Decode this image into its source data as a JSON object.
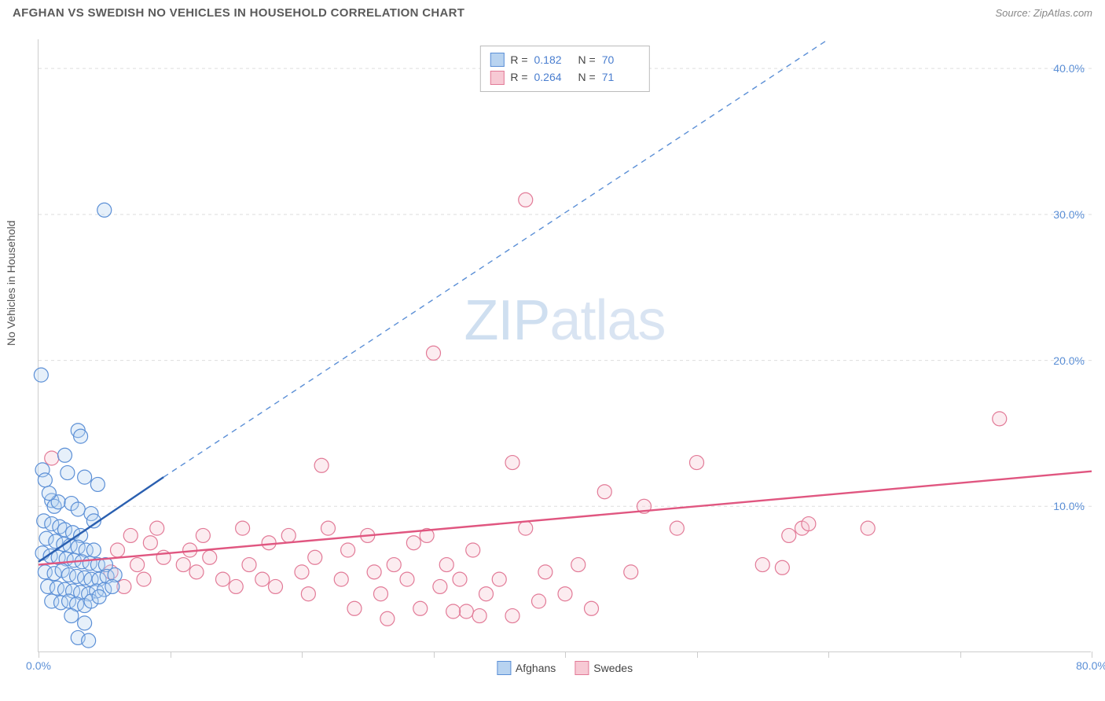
{
  "title": "AFGHAN VS SWEDISH NO VEHICLES IN HOUSEHOLD CORRELATION CHART",
  "source": "Source: ZipAtlas.com",
  "watermark": {
    "zip": "ZIP",
    "atlas": "atlas"
  },
  "y_axis_label": "No Vehicles in Household",
  "chart": {
    "type": "scatter",
    "background_color": "#ffffff",
    "grid_color": "#dddddd",
    "grid_dash": "4,4",
    "axis_color": "#cccccc",
    "xlim": [
      0,
      80
    ],
    "ylim": [
      0,
      42
    ],
    "x_ticks": [
      0,
      10,
      20,
      30,
      40,
      50,
      60,
      70,
      80
    ],
    "x_tick_labels": {
      "0": "0.0%",
      "80": "80.0%"
    },
    "y_ticks": [
      10,
      20,
      30,
      40
    ],
    "y_tick_labels": {
      "10": "10.0%",
      "20": "20.0%",
      "30": "30.0%",
      "40": "40.0%"
    },
    "tick_label_color": "#5b8fd6",
    "tick_label_fontsize": 14,
    "axis_label_fontsize": 14,
    "title_fontsize": 15,
    "title_color": "#5b5b5b",
    "point_radius": 9,
    "point_fill_opacity": 0.35,
    "point_stroke_width": 1.2
  },
  "stats_legend": {
    "rows": [
      {
        "swatch_fill": "#b8d3f0",
        "swatch_border": "#5b8fd6",
        "r_label": "R =",
        "r_value": "0.182",
        "n_label": "N =",
        "n_value": "70"
      },
      {
        "swatch_fill": "#f7c9d4",
        "swatch_border": "#e27a97",
        "r_label": "R =",
        "r_value": "0.264",
        "n_label": "N =",
        "n_value": "71"
      }
    ]
  },
  "series_legend": [
    {
      "swatch_fill": "#b8d3f0",
      "swatch_border": "#5b8fd6",
      "label": "Afghans"
    },
    {
      "swatch_fill": "#f7c9d4",
      "swatch_border": "#e27a97",
      "label": "Swedes"
    }
  ],
  "series": [
    {
      "name": "Afghans",
      "fill": "#b8d3f0",
      "stroke": "#5b8fd6",
      "trend": {
        "solid": {
          "x1": 0,
          "y1": 6.2,
          "x2": 9.5,
          "y2": 12.0,
          "color": "#2a5fb0",
          "width": 2.4
        },
        "dashed": {
          "x1": 9.5,
          "y1": 12.0,
          "x2": 60,
          "y2": 42.0,
          "color": "#5b8fd6",
          "width": 1.4,
          "dash": "7,6"
        }
      },
      "points": [
        [
          0.2,
          19.0
        ],
        [
          5.0,
          30.3
        ],
        [
          0.3,
          12.5
        ],
        [
          3.0,
          15.2
        ],
        [
          3.2,
          14.8
        ],
        [
          2.0,
          13.5
        ],
        [
          0.5,
          11.8
        ],
        [
          3.5,
          12.0
        ],
        [
          4.5,
          11.5
        ],
        [
          2.2,
          12.3
        ],
        [
          1.0,
          10.4
        ],
        [
          1.2,
          10.0
        ],
        [
          1.5,
          10.3
        ],
        [
          2.5,
          10.2
        ],
        [
          0.8,
          10.9
        ],
        [
          3.0,
          9.8
        ],
        [
          4.0,
          9.5
        ],
        [
          4.2,
          9.0
        ],
        [
          0.4,
          9.0
        ],
        [
          1.0,
          8.8
        ],
        [
          1.6,
          8.6
        ],
        [
          2.0,
          8.4
        ],
        [
          2.6,
          8.2
        ],
        [
          3.2,
          8.0
        ],
        [
          0.6,
          7.8
        ],
        [
          1.3,
          7.6
        ],
        [
          1.9,
          7.4
        ],
        [
          2.4,
          7.3
        ],
        [
          3.0,
          7.2
        ],
        [
          3.6,
          7.0
        ],
        [
          4.2,
          7.0
        ],
        [
          0.3,
          6.8
        ],
        [
          0.9,
          6.6
        ],
        [
          1.5,
          6.5
        ],
        [
          2.1,
          6.4
        ],
        [
          2.7,
          6.3
        ],
        [
          3.3,
          6.2
        ],
        [
          3.9,
          6.1
        ],
        [
          4.5,
          6.0
        ],
        [
          5.1,
          6.0
        ],
        [
          0.5,
          5.5
        ],
        [
          1.2,
          5.4
        ],
        [
          1.8,
          5.6
        ],
        [
          2.3,
          5.3
        ],
        [
          2.9,
          5.2
        ],
        [
          3.5,
          5.1
        ],
        [
          4.0,
          5.0
        ],
        [
          4.6,
          5.0
        ],
        [
          5.2,
          5.2
        ],
        [
          5.8,
          5.3
        ],
        [
          0.7,
          4.5
        ],
        [
          1.4,
          4.4
        ],
        [
          2.0,
          4.3
        ],
        [
          2.6,
          4.2
        ],
        [
          3.2,
          4.1
        ],
        [
          3.8,
          4.0
        ],
        [
          4.4,
          4.2
        ],
        [
          5.0,
          4.3
        ],
        [
          5.6,
          4.5
        ],
        [
          1.0,
          3.5
        ],
        [
          1.7,
          3.4
        ],
        [
          2.3,
          3.5
        ],
        [
          2.9,
          3.3
        ],
        [
          3.5,
          3.2
        ],
        [
          4.0,
          3.5
        ],
        [
          4.6,
          3.8
        ],
        [
          2.5,
          2.5
        ],
        [
          3.5,
          2.0
        ],
        [
          3.0,
          1.0
        ],
        [
          3.8,
          0.8
        ]
      ]
    },
    {
      "name": "Swedes",
      "fill": "#f7c9d4",
      "stroke": "#e27a97",
      "trend": {
        "solid": {
          "x1": 0,
          "y1": 6.0,
          "x2": 80,
          "y2": 12.4,
          "color": "#e05680",
          "width": 2.4
        }
      },
      "points": [
        [
          1.0,
          13.3
        ],
        [
          37.0,
          31.0
        ],
        [
          30.0,
          20.5
        ],
        [
          73.0,
          16.0
        ],
        [
          21.5,
          12.8
        ],
        [
          36.0,
          13.0
        ],
        [
          43.0,
          11.0
        ],
        [
          46.0,
          10.0
        ],
        [
          48.5,
          8.5
        ],
        [
          50.0,
          13.0
        ],
        [
          55.0,
          6.0
        ],
        [
          56.5,
          5.8
        ],
        [
          57.0,
          8.0
        ],
        [
          58.0,
          8.5
        ],
        [
          58.5,
          8.8
        ],
        [
          63.0,
          8.5
        ],
        [
          9.0,
          8.5
        ],
        [
          9.5,
          6.5
        ],
        [
          11.0,
          6.0
        ],
        [
          11.5,
          7.0
        ],
        [
          12.0,
          5.5
        ],
        [
          12.5,
          8.0
        ],
        [
          13.0,
          6.5
        ],
        [
          14.0,
          5.0
        ],
        [
          15.0,
          4.5
        ],
        [
          15.5,
          8.5
        ],
        [
          16.0,
          6.0
        ],
        [
          17.0,
          5.0
        ],
        [
          17.5,
          7.5
        ],
        [
          18.0,
          4.5
        ],
        [
          19.0,
          8.0
        ],
        [
          20.0,
          5.5
        ],
        [
          20.5,
          4.0
        ],
        [
          21.0,
          6.5
        ],
        [
          22.0,
          8.5
        ],
        [
          23.0,
          5.0
        ],
        [
          23.5,
          7.0
        ],
        [
          24.0,
          3.0
        ],
        [
          25.0,
          8.0
        ],
        [
          25.5,
          5.5
        ],
        [
          26.0,
          4.0
        ],
        [
          27.0,
          6.0
        ],
        [
          28.0,
          5.0
        ],
        [
          28.5,
          7.5
        ],
        [
          29.0,
          3.0
        ],
        [
          29.5,
          8.0
        ],
        [
          30.5,
          4.5
        ],
        [
          31.0,
          6.0
        ],
        [
          32.0,
          5.0
        ],
        [
          32.5,
          2.8
        ],
        [
          33.0,
          7.0
        ],
        [
          34.0,
          4.0
        ],
        [
          35.0,
          5.0
        ],
        [
          36.0,
          2.5
        ],
        [
          37.0,
          8.5
        ],
        [
          38.0,
          3.5
        ],
        [
          38.5,
          5.5
        ],
        [
          40.0,
          4.0
        ],
        [
          41.0,
          6.0
        ],
        [
          42.0,
          3.0
        ],
        [
          5.5,
          5.5
        ],
        [
          6.0,
          7.0
        ],
        [
          6.5,
          4.5
        ],
        [
          7.0,
          8.0
        ],
        [
          7.5,
          6.0
        ],
        [
          8.0,
          5.0
        ],
        [
          8.5,
          7.5
        ],
        [
          33.5,
          2.5
        ],
        [
          31.5,
          2.8
        ],
        [
          26.5,
          2.3
        ],
        [
          45.0,
          5.5
        ]
      ]
    }
  ]
}
